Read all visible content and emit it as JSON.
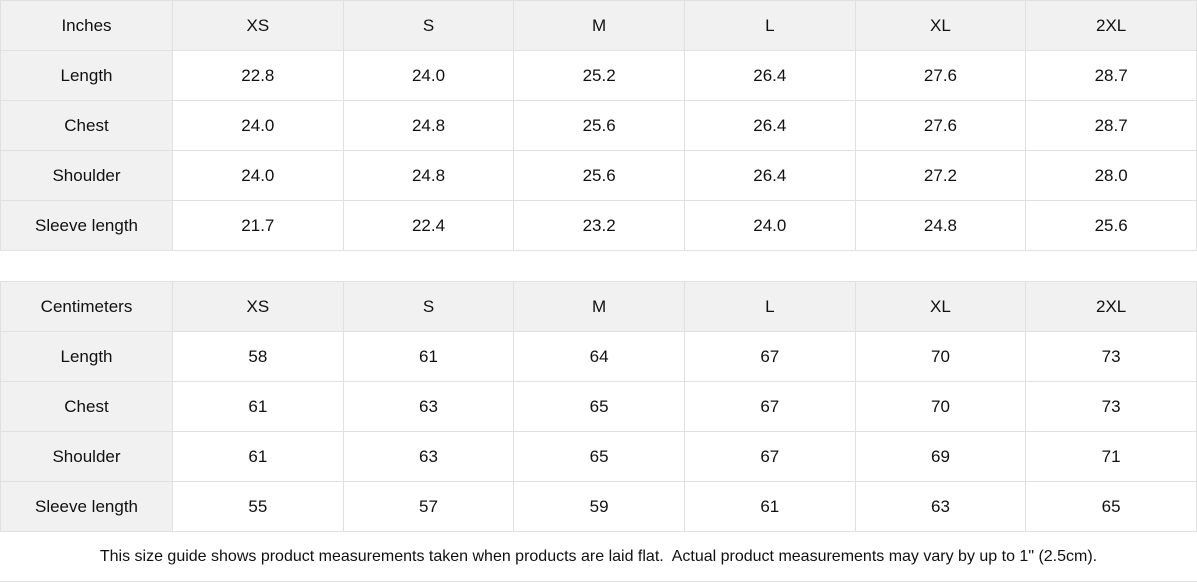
{
  "page": {
    "background_color": "#ffffff",
    "header_cell_color": "#f1f1f1",
    "border_color": "#e0e0e0",
    "text_color": "#111111"
  },
  "tables": [
    {
      "unit_label": "Inches",
      "size_headers": [
        "XS",
        "S",
        "M",
        "L",
        "XL",
        "2XL"
      ],
      "rows": [
        {
          "label": "Length",
          "values": [
            "22.8",
            "24.0",
            "25.2",
            "26.4",
            "27.6",
            "28.7"
          ]
        },
        {
          "label": "Chest",
          "values": [
            "24.0",
            "24.8",
            "25.6",
            "26.4",
            "27.6",
            "28.7"
          ]
        },
        {
          "label": "Shoulder",
          "values": [
            "24.0",
            "24.8",
            "25.6",
            "26.4",
            "27.2",
            "28.0"
          ]
        },
        {
          "label": "Sleeve length",
          "values": [
            "21.7",
            "22.4",
            "23.2",
            "24.0",
            "24.8",
            "25.6"
          ]
        }
      ]
    },
    {
      "unit_label": "Centimeters",
      "size_headers": [
        "XS",
        "S",
        "M",
        "L",
        "XL",
        "2XL"
      ],
      "rows": [
        {
          "label": "Length",
          "values": [
            "58",
            "61",
            "64",
            "67",
            "70",
            "73"
          ]
        },
        {
          "label": "Chest",
          "values": [
            "61",
            "63",
            "65",
            "67",
            "70",
            "73"
          ]
        },
        {
          "label": "Shoulder",
          "values": [
            "61",
            "63",
            "65",
            "67",
            "69",
            "71"
          ]
        },
        {
          "label": "Sleeve length",
          "values": [
            "55",
            "57",
            "59",
            "61",
            "63",
            "65"
          ]
        }
      ]
    }
  ],
  "footer": {
    "note": "This size guide shows product measurements taken when products are laid flat.  Actual product measurements may vary by up to 1\" (2.5cm)."
  }
}
